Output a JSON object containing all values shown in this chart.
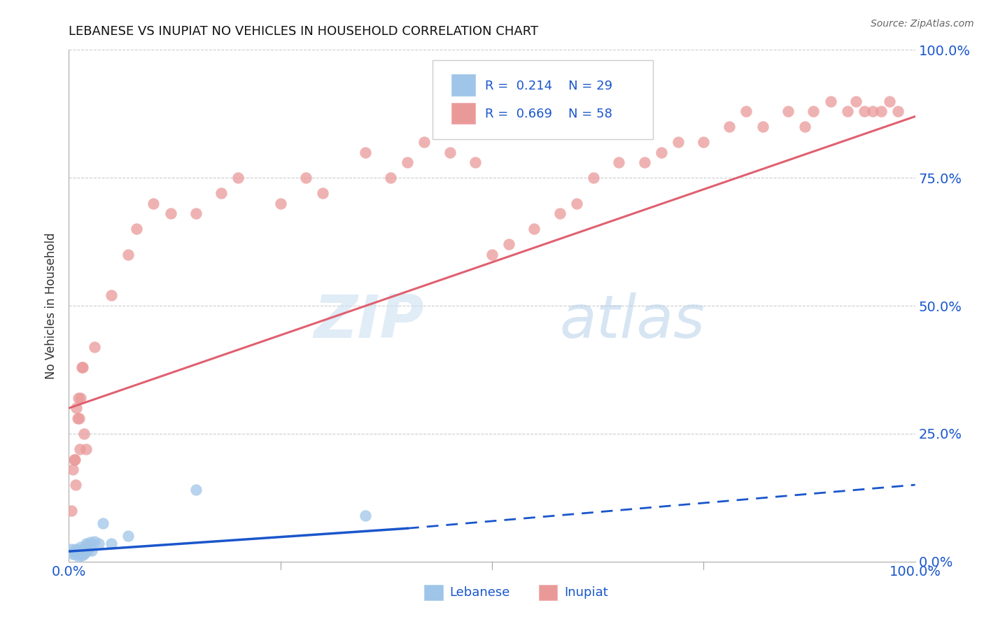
{
  "title": "LEBANESE VS INUPIAT NO VEHICLES IN HOUSEHOLD CORRELATION CHART",
  "source": "Source: ZipAtlas.com",
  "ylabel": "No Vehicles in Household",
  "xlim": [
    0,
    100
  ],
  "ylim": [
    0,
    100
  ],
  "ytick_values": [
    0,
    25,
    50,
    75,
    100
  ],
  "legend_r1": "R =  0.214",
  "legend_n1": "N = 29",
  "legend_r2": "R =  0.669",
  "legend_n2": "N = 58",
  "legend_label1": "Lebanese",
  "legend_label2": "Inupiat",
  "watermark_zip": "ZIP",
  "watermark_atlas": "atlas",
  "blue_color": "#9fc5e8",
  "pink_color": "#ea9999",
  "blue_line_color": "#1a56cc",
  "pink_line_color": "#e06070",
  "blue_scatter": [
    [
      0.3,
      2.5
    ],
    [
      0.5,
      1.5
    ],
    [
      0.6,
      2.0
    ],
    [
      0.7,
      1.5
    ],
    [
      0.8,
      2.5
    ],
    [
      0.9,
      1.8
    ],
    [
      1.0,
      2.2
    ],
    [
      1.1,
      1.0
    ],
    [
      1.2,
      2.0
    ],
    [
      1.3,
      1.5
    ],
    [
      1.4,
      2.8
    ],
    [
      1.5,
      1.2
    ],
    [
      1.6,
      2.5
    ],
    [
      1.7,
      1.8
    ],
    [
      1.8,
      1.5
    ],
    [
      1.9,
      2.2
    ],
    [
      2.0,
      3.5
    ],
    [
      2.1,
      2.0
    ],
    [
      2.2,
      3.2
    ],
    [
      2.3,
      2.5
    ],
    [
      2.5,
      3.8
    ],
    [
      2.7,
      2.2
    ],
    [
      3.0,
      4.0
    ],
    [
      3.5,
      3.5
    ],
    [
      4.0,
      7.5
    ],
    [
      5.0,
      3.5
    ],
    [
      7.0,
      5.0
    ],
    [
      15.0,
      14.0
    ],
    [
      35.0,
      9.0
    ]
  ],
  "pink_scatter": [
    [
      0.3,
      10.0
    ],
    [
      0.5,
      18.0
    ],
    [
      0.6,
      20.0
    ],
    [
      0.7,
      20.0
    ],
    [
      0.8,
      15.0
    ],
    [
      0.9,
      30.0
    ],
    [
      1.0,
      28.0
    ],
    [
      1.1,
      32.0
    ],
    [
      1.2,
      28.0
    ],
    [
      1.3,
      22.0
    ],
    [
      1.4,
      32.0
    ],
    [
      1.5,
      38.0
    ],
    [
      1.6,
      38.0
    ],
    [
      1.8,
      25.0
    ],
    [
      2.0,
      22.0
    ],
    [
      3.0,
      42.0
    ],
    [
      5.0,
      52.0
    ],
    [
      7.0,
      60.0
    ],
    [
      8.0,
      65.0
    ],
    [
      10.0,
      70.0
    ],
    [
      12.0,
      68.0
    ],
    [
      15.0,
      68.0
    ],
    [
      18.0,
      72.0
    ],
    [
      20.0,
      75.0
    ],
    [
      25.0,
      70.0
    ],
    [
      28.0,
      75.0
    ],
    [
      30.0,
      72.0
    ],
    [
      35.0,
      80.0
    ],
    [
      38.0,
      75.0
    ],
    [
      40.0,
      78.0
    ],
    [
      42.0,
      82.0
    ],
    [
      45.0,
      80.0
    ],
    [
      48.0,
      78.0
    ],
    [
      50.0,
      60.0
    ],
    [
      52.0,
      62.0
    ],
    [
      55.0,
      65.0
    ],
    [
      58.0,
      68.0
    ],
    [
      60.0,
      70.0
    ],
    [
      62.0,
      75.0
    ],
    [
      65.0,
      78.0
    ],
    [
      68.0,
      78.0
    ],
    [
      70.0,
      80.0
    ],
    [
      72.0,
      82.0
    ],
    [
      75.0,
      82.0
    ],
    [
      78.0,
      85.0
    ],
    [
      80.0,
      88.0
    ],
    [
      82.0,
      85.0
    ],
    [
      85.0,
      88.0
    ],
    [
      87.0,
      85.0
    ],
    [
      88.0,
      88.0
    ],
    [
      90.0,
      90.0
    ],
    [
      92.0,
      88.0
    ],
    [
      93.0,
      90.0
    ],
    [
      94.0,
      88.0
    ],
    [
      95.0,
      88.0
    ],
    [
      96.0,
      88.0
    ],
    [
      97.0,
      90.0
    ],
    [
      98.0,
      88.0
    ]
  ],
  "pink_line_y_start": 30.0,
  "pink_line_y_end": 87.0,
  "blue_line_y_start": 2.0,
  "blue_line_y_mid": 6.5,
  "blue_line_y_end": 15.0,
  "blue_solid_end_x": 40.0
}
